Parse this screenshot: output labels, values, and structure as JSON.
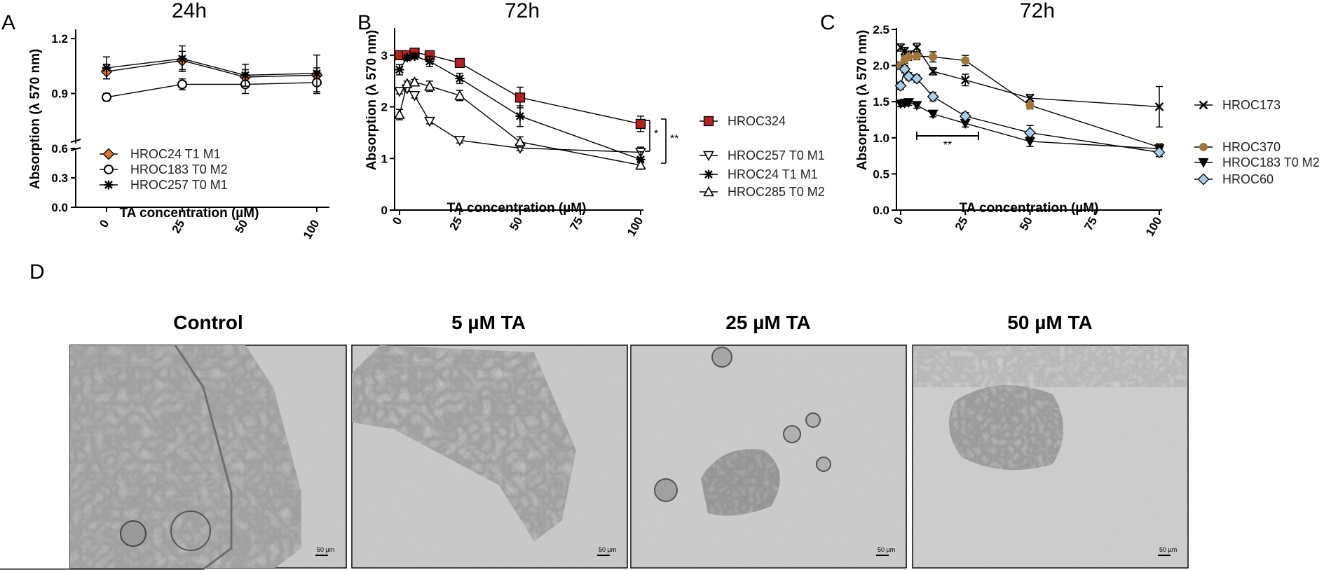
{
  "chart_data": [
    {
      "id": "A",
      "panel_letter": "A",
      "title": "24h",
      "type": "line",
      "xlabel": "TA concentration (µM)",
      "ylabel": "Absorption (λ 570 nm)",
      "categories": [
        "0",
        "25",
        "50",
        "100"
      ],
      "yticks": [
        "0.0",
        "0.3",
        "0.6",
        "0.9",
        "1.2"
      ],
      "axis_break": true,
      "series": [
        {
          "name": "HROC24 T1 M1",
          "marker": "diamond",
          "color": "#e07b2a",
          "values": [
            1.02,
            1.08,
            0.99,
            1.0
          ],
          "errors": [
            0.04,
            0.05,
            0.04,
            0.04
          ]
        },
        {
          "name": "HROC183 T0 M2",
          "marker": "circle-open",
          "color": "#000000",
          "values": [
            0.88,
            0.95,
            0.95,
            0.96
          ],
          "errors": [
            0.02,
            0.03,
            0.05,
            0.06
          ]
        },
        {
          "name": "HROC257 T0 M1",
          "marker": "star",
          "color": "#000000",
          "values": [
            1.04,
            1.09,
            1.0,
            1.01
          ],
          "errors": [
            0.06,
            0.07,
            0.06,
            0.1
          ]
        }
      ],
      "legend": "inside-bottom-left",
      "grid": false
    },
    {
      "id": "B",
      "panel_letter": "B",
      "title": "72h",
      "type": "line",
      "xlabel": "TA concentration (µM)",
      "ylabel": "Absorption (λ 570 nm)",
      "xticks": [
        0,
        25,
        50,
        75,
        100
      ],
      "yticks": [
        0,
        1,
        2,
        3
      ],
      "xlim": [
        0,
        100
      ],
      "ylim": [
        0,
        3.5
      ],
      "series": [
        {
          "name": "HROC324",
          "marker": "square-filled",
          "color": "#b3221e",
          "x": [
            0,
            3.125,
            6.25,
            12.5,
            25,
            50,
            100
          ],
          "y": [
            3.0,
            3.0,
            3.05,
            3.0,
            2.85,
            2.18,
            1.67
          ],
          "errors": [
            0.05,
            0.05,
            0.05,
            0.05,
            0.05,
            0.2,
            0.15
          ]
        },
        {
          "name": "HROC257 T0 M1",
          "marker": "triangle-down-open",
          "color": "#000000",
          "x": [
            0,
            3.125,
            6.25,
            12.5,
            25,
            50,
            100
          ],
          "y": [
            2.3,
            2.35,
            2.22,
            1.72,
            1.35,
            1.2,
            1.12
          ],
          "errors": [
            0.05,
            0.05,
            0.05,
            0.05,
            0.05,
            0.05,
            0.1
          ]
        },
        {
          "name": "HROC24 T1 M1",
          "marker": "star",
          "color": "#000000",
          "x": [
            0,
            3.125,
            6.25,
            12.5,
            25,
            50,
            100
          ],
          "y": [
            2.72,
            2.95,
            2.98,
            2.88,
            2.55,
            1.82,
            0.98
          ],
          "errors": [
            0.1,
            0.05,
            0.05,
            0.1,
            0.1,
            0.2,
            0.15
          ]
        },
        {
          "name": "HROC285 T0 M2",
          "marker": "triangle-up-open",
          "color": "#000000",
          "x": [
            0,
            3.125,
            6.25,
            12.5,
            25,
            50,
            100
          ],
          "y": [
            1.85,
            2.45,
            2.48,
            2.4,
            2.22,
            1.32,
            0.87
          ],
          "errors": [
            0.1,
            0.05,
            0.05,
            0.1,
            0.1,
            0.1,
            0.08
          ]
        }
      ],
      "annotations": [
        "*",
        "**"
      ],
      "legend": "right",
      "grid": false
    },
    {
      "id": "C",
      "panel_letter": "C",
      "title": "72h",
      "type": "line",
      "xlabel": "TA concentration (µM)",
      "ylabel": "Absorption (λ 570 nm)",
      "xticks": [
        0,
        25,
        50,
        75,
        100
      ],
      "yticks": [
        "0.0",
        "0.5",
        "1.0",
        "1.5",
        "2.0",
        "2.5"
      ],
      "xlim": [
        0,
        100
      ],
      "ylim": [
        0,
        2.5
      ],
      "series": [
        {
          "name": "HROC173",
          "marker": "x",
          "color": "#000000",
          "x": [
            0,
            1.5625,
            3.125,
            6.25,
            12.5,
            25,
            50,
            100
          ],
          "y": [
            2.25,
            2.2,
            2.15,
            2.25,
            1.92,
            1.8,
            1.55,
            1.43
          ],
          "errors": [
            0.05,
            0.05,
            0.05,
            0.06,
            0.05,
            0.08,
            0.05,
            0.28
          ]
        },
        {
          "name": "HROC370",
          "marker": "circle-filled",
          "color": "#a0763a",
          "x": [
            0,
            1.5625,
            3.125,
            6.25,
            12.5,
            25,
            50,
            100
          ],
          "y": [
            2.0,
            2.08,
            2.12,
            2.13,
            2.12,
            2.07,
            1.45,
            0.87
          ],
          "errors": [
            0.05,
            0.05,
            0.05,
            0.05,
            0.07,
            0.07,
            0.05,
            0.05
          ]
        },
        {
          "name": "HROC183 T0 M2",
          "marker": "triangle-down-filled",
          "color": "#000000",
          "x": [
            0,
            1.5625,
            3.125,
            6.25,
            12.5,
            25,
            50,
            100
          ],
          "y": [
            1.47,
            1.48,
            1.49,
            1.45,
            1.33,
            1.2,
            0.95,
            0.85
          ],
          "errors": [
            0.04,
            0.04,
            0.04,
            0.04,
            0.04,
            0.05,
            0.07,
            0.04
          ]
        },
        {
          "name": "HROC60",
          "marker": "diamond-filled",
          "color": "#a9cde8",
          "x": [
            0,
            1.5625,
            3.125,
            6.25,
            12.5,
            25,
            50,
            100
          ],
          "y": [
            1.72,
            1.95,
            1.85,
            1.82,
            1.57,
            1.3,
            1.07,
            0.8
          ],
          "errors": [
            0.05,
            0.05,
            0.05,
            0.05,
            0.06,
            0.05,
            0.1,
            0.06
          ]
        }
      ],
      "annotations": [
        "**"
      ],
      "legend": "right",
      "grid": false
    }
  ],
  "photos": {
    "panel_letter": "D",
    "items": [
      {
        "title": "Control",
        "scale_label": "50 µm"
      },
      {
        "title": "5 µM TA",
        "scale_label": "50 µm"
      },
      {
        "title": "25 µM TA",
        "scale_label": "50 µm"
      },
      {
        "title": "50 µM TA",
        "scale_label": "50 µm"
      }
    ]
  }
}
